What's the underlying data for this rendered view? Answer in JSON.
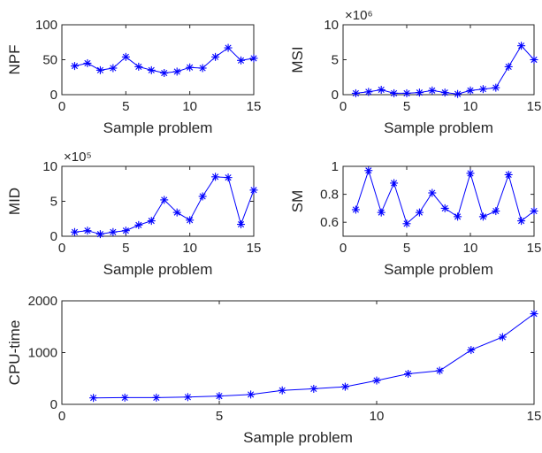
{
  "colors": {
    "series": "#0000ff",
    "axes": "#262626"
  },
  "chart_data": [
    {
      "type": "line",
      "marker": "asterisk",
      "xlabel": "Sample problem",
      "ylabel": "NPF",
      "xlim": [
        0,
        15
      ],
      "ylim": [
        0,
        100
      ],
      "xticks": [
        "0",
        "5",
        "10",
        "15"
      ],
      "yticks": [
        "0",
        "50",
        "100"
      ],
      "exponent": "",
      "x": [
        1,
        2,
        3,
        4,
        5,
        6,
        7,
        8,
        9,
        10,
        11,
        12,
        13,
        14,
        15
      ],
      "values": [
        41,
        45,
        35,
        38,
        54,
        40,
        35,
        31,
        33,
        39,
        38,
        54,
        67,
        49,
        52
      ]
    },
    {
      "type": "line",
      "marker": "asterisk",
      "xlabel": "Sample problem",
      "ylabel": "MSI",
      "xlim": [
        0,
        15
      ],
      "ylim": [
        0,
        10
      ],
      "xticks": [
        "0",
        "5",
        "10",
        "15"
      ],
      "yticks": [
        "0",
        "5",
        "10"
      ],
      "exponent": "×10⁶",
      "x": [
        1,
        2,
        3,
        4,
        5,
        6,
        7,
        8,
        9,
        10,
        11,
        12,
        13,
        14,
        15
      ],
      "values": [
        0.2,
        0.4,
        0.7,
        0.2,
        0.2,
        0.3,
        0.6,
        0.3,
        0.1,
        0.6,
        0.8,
        1.0,
        4.0,
        7.0,
        5.0
      ]
    },
    {
      "type": "line",
      "marker": "asterisk",
      "xlabel": "Sample problem",
      "ylabel": "MID",
      "xlim": [
        0,
        15
      ],
      "ylim": [
        0,
        10
      ],
      "xticks": [
        "0",
        "5",
        "10",
        "15"
      ],
      "yticks": [
        "0",
        "5",
        "10"
      ],
      "exponent": "×10⁵",
      "x": [
        1,
        2,
        3,
        4,
        5,
        6,
        7,
        8,
        9,
        10,
        11,
        12,
        13,
        14,
        15
      ],
      "values": [
        0.6,
        0.8,
        0.3,
        0.6,
        0.8,
        1.6,
        2.2,
        5.2,
        3.4,
        2.3,
        5.7,
        8.5,
        8.4,
        1.7,
        6.6
      ]
    },
    {
      "type": "line",
      "marker": "asterisk",
      "xlabel": "Sample problem",
      "ylabel": "SM",
      "xlim": [
        0,
        15
      ],
      "ylim": [
        0.5,
        1
      ],
      "xticks": [
        "0",
        "5",
        "10",
        "15"
      ],
      "yticks": [
        "0.6",
        "0.8",
        "1"
      ],
      "exponent": "",
      "x": [
        1,
        2,
        3,
        4,
        5,
        6,
        7,
        8,
        9,
        10,
        11,
        12,
        13,
        14,
        15
      ],
      "values": [
        0.69,
        0.97,
        0.67,
        0.88,
        0.59,
        0.67,
        0.81,
        0.7,
        0.64,
        0.95,
        0.64,
        0.68,
        0.94,
        0.61,
        0.68
      ]
    },
    {
      "type": "line",
      "marker": "asterisk",
      "xlabel": "Sample problem",
      "ylabel": "CPU-time",
      "xlim": [
        0,
        15
      ],
      "ylim": [
        0,
        2000
      ],
      "xticks": [
        "0",
        "5",
        "10",
        "15"
      ],
      "yticks": [
        "0",
        "1000",
        "2000"
      ],
      "exponent": "",
      "x": [
        1,
        2,
        3,
        4,
        5,
        6,
        7,
        8,
        9,
        10,
        11,
        12,
        13,
        14,
        15
      ],
      "values": [
        125,
        130,
        130,
        140,
        160,
        190,
        270,
        300,
        340,
        460,
        590,
        650,
        1050,
        1300,
        1750
      ]
    }
  ]
}
